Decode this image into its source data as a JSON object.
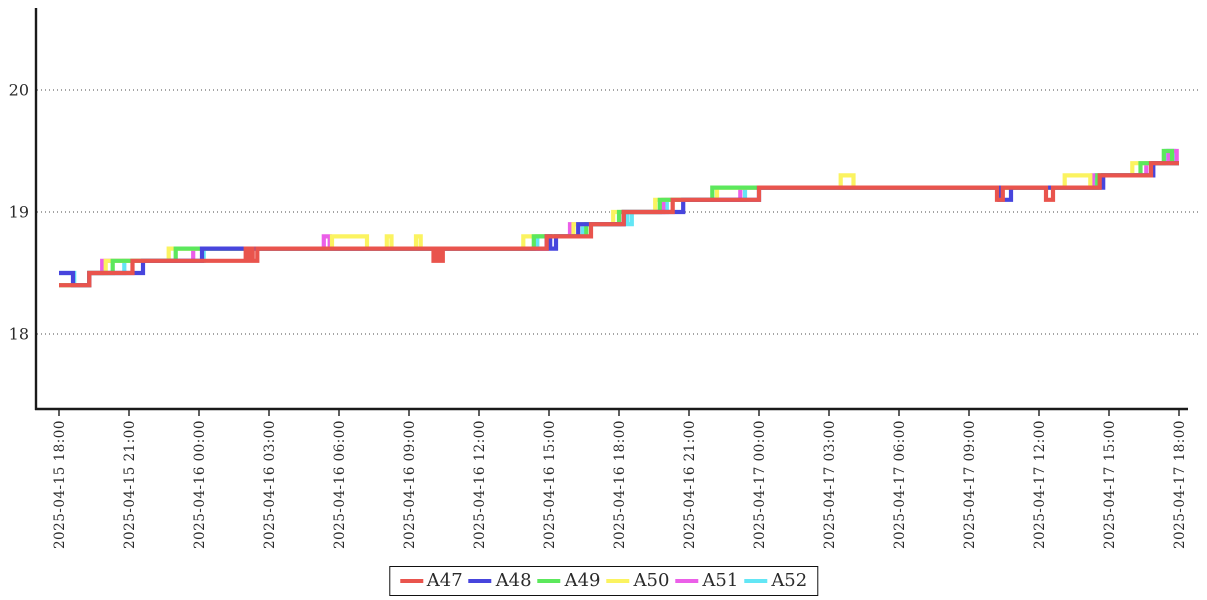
{
  "chart_data": {
    "type": "line",
    "subtype": "step-after",
    "title": "",
    "xlabel": "",
    "ylabel": "",
    "x_axis": {
      "tick_labels": [
        "2025-04-15 18:00",
        "2025-04-15 21:00",
        "2025-04-16 00:00",
        "2025-04-16 03:00",
        "2025-04-16 06:00",
        "2025-04-16 09:00",
        "2025-04-16 12:00",
        "2025-04-16 15:00",
        "2025-04-16 18:00",
        "2025-04-16 21:00",
        "2025-04-17 00:00",
        "2025-04-17 03:00",
        "2025-04-17 06:00",
        "2025-04-17 09:00",
        "2025-04-17 12:00",
        "2025-04-17 15:00",
        "2025-04-17 18:00"
      ],
      "tick_hours": [
        0,
        3,
        6,
        9,
        12,
        15,
        18,
        21,
        24,
        27,
        30,
        33,
        36,
        39,
        42,
        45,
        48
      ],
      "range_hours": [
        0,
        48
      ],
      "origin_label": "hours since 2025-04-15 18:00"
    },
    "y_axis": {
      "ticks": [
        18,
        19,
        20
      ],
      "range": [
        17.4,
        20.67
      ],
      "grid": "dotted-horizontal"
    },
    "legend_position": "bottom-center",
    "draw_order": [
      "A52",
      "A51",
      "A50",
      "A49",
      "A48",
      "A47"
    ],
    "series": [
      {
        "name": "A47",
        "color": "#e9544d",
        "points": [
          [
            0,
            18.4
          ],
          [
            1.3,
            18.5
          ],
          [
            3.15,
            18.6
          ],
          [
            8.0,
            18.7
          ],
          [
            8.1,
            18.6
          ],
          [
            8.2,
            18.7
          ],
          [
            8.3,
            18.6
          ],
          [
            8.5,
            18.7
          ],
          [
            16.05,
            18.6
          ],
          [
            16.18,
            18.7
          ],
          [
            16.3,
            18.6
          ],
          [
            16.45,
            18.7
          ],
          [
            20.9,
            18.8
          ],
          [
            22.8,
            18.9
          ],
          [
            24.2,
            19.0
          ],
          [
            26.3,
            19.1
          ],
          [
            30.0,
            19.2
          ],
          [
            40.2,
            19.1
          ],
          [
            40.45,
            19.2
          ],
          [
            42.3,
            19.1
          ],
          [
            42.6,
            19.2
          ],
          [
            44.6,
            19.3
          ],
          [
            46.8,
            19.4
          ],
          [
            48,
            19.4
          ]
        ]
      },
      {
        "name": "A48",
        "color": "#4745dd",
        "points": [
          [
            0,
            18.5
          ],
          [
            0.6,
            18.4
          ],
          [
            1.3,
            18.5
          ],
          [
            3.6,
            18.6
          ],
          [
            6.13,
            18.7
          ],
          [
            20.9,
            18.8
          ],
          [
            21.05,
            18.7
          ],
          [
            21.3,
            18.8
          ],
          [
            22.25,
            18.9
          ],
          [
            24.2,
            19.0
          ],
          [
            26.75,
            19.1
          ],
          [
            30.0,
            19.2
          ],
          [
            40.3,
            19.1
          ],
          [
            40.8,
            19.2
          ],
          [
            44.75,
            19.3
          ],
          [
            46.9,
            19.4
          ],
          [
            48,
            19.4
          ]
        ]
      },
      {
        "name": "A49",
        "color": "#5ce85c",
        "points": [
          [
            0,
            18.4
          ],
          [
            1.3,
            18.5
          ],
          [
            2.3,
            18.6
          ],
          [
            5.0,
            18.7
          ],
          [
            20.35,
            18.8
          ],
          [
            22.6,
            18.9
          ],
          [
            24.0,
            19.0
          ],
          [
            25.75,
            19.1
          ],
          [
            28.0,
            19.2
          ],
          [
            44.5,
            19.3
          ],
          [
            46.35,
            19.4
          ],
          [
            47.35,
            19.5
          ],
          [
            47.7,
            19.4
          ],
          [
            48,
            19.4
          ]
        ]
      },
      {
        "name": "A50",
        "color": "#fbf360",
        "points": [
          [
            0,
            18.4
          ],
          [
            1.3,
            18.5
          ],
          [
            2.0,
            18.6
          ],
          [
            4.7,
            18.7
          ],
          [
            11.7,
            18.8
          ],
          [
            13.2,
            18.7
          ],
          [
            14.05,
            18.8
          ],
          [
            14.25,
            18.7
          ],
          [
            15.3,
            18.8
          ],
          [
            15.5,
            18.7
          ],
          [
            19.9,
            18.8
          ],
          [
            22.05,
            18.9
          ],
          [
            23.75,
            19.0
          ],
          [
            25.55,
            19.1
          ],
          [
            28.2,
            19.2
          ],
          [
            33.5,
            19.3
          ],
          [
            34.05,
            19.2
          ],
          [
            43.1,
            19.3
          ],
          [
            44.2,
            19.2
          ],
          [
            44.6,
            19.3
          ],
          [
            46.0,
            19.4
          ],
          [
            48,
            19.4
          ]
        ]
      },
      {
        "name": "A51",
        "color": "#eb5fe8",
        "points": [
          [
            0,
            18.4
          ],
          [
            1.3,
            18.5
          ],
          [
            1.85,
            18.6
          ],
          [
            5.75,
            18.7
          ],
          [
            11.35,
            18.8
          ],
          [
            11.6,
            18.7
          ],
          [
            20.9,
            18.8
          ],
          [
            21.9,
            18.9
          ],
          [
            24.2,
            19.0
          ],
          [
            25.9,
            19.1
          ],
          [
            29.2,
            19.2
          ],
          [
            44.3,
            19.3
          ],
          [
            46.6,
            19.4
          ],
          [
            47.55,
            19.5
          ],
          [
            47.9,
            19.4
          ],
          [
            48,
            19.4
          ]
        ]
      },
      {
        "name": "A52",
        "color": "#63e6f5",
        "points": [
          [
            0,
            18.5
          ],
          [
            0.65,
            18.4
          ],
          [
            1.3,
            18.5
          ],
          [
            2.8,
            18.6
          ],
          [
            6.2,
            18.7
          ],
          [
            20.5,
            18.8
          ],
          [
            22.45,
            18.9
          ],
          [
            24.2,
            19.0
          ],
          [
            24.35,
            18.9
          ],
          [
            24.55,
            19.0
          ],
          [
            26.05,
            19.1
          ],
          [
            29.4,
            19.2
          ],
          [
            44.45,
            19.3
          ],
          [
            46.8,
            19.4
          ],
          [
            47.45,
            19.5
          ],
          [
            47.8,
            19.4
          ],
          [
            48,
            19.4
          ]
        ]
      }
    ]
  },
  "colors": {
    "axis": "#1a1a1a",
    "grid": "#4a4a4a",
    "text": "#2b2b2b",
    "background": "#ffffff"
  }
}
